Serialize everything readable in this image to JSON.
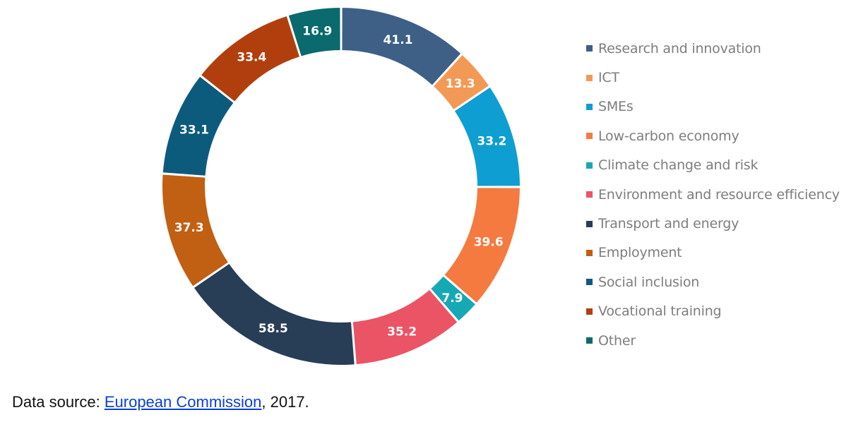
{
  "chart_data": {
    "type": "pie",
    "donut": true,
    "categories": [
      "Research and innovation",
      "ICT",
      "SMEs",
      "Low-carbon economy",
      "Climate change and risk",
      "Environment and resource efficiency",
      "Transport and energy",
      "Employment",
      "Social inclusion",
      "Vocational training",
      "Other"
    ],
    "values": [
      41.1,
      13.3,
      33.2,
      39.6,
      7.9,
      35.2,
      58.5,
      37.3,
      33.1,
      33.4,
      16.9
    ],
    "value_labels": [
      "41.1",
      "13.3",
      "33.2",
      "39.6",
      "7.9",
      "35.2",
      "58.5",
      "37.3",
      "33.1",
      "33.4",
      "16.9"
    ],
    "colors": [
      "#3e5f86",
      "#f29a55",
      "#0f9ed1",
      "#f57a40",
      "#16a9b5",
      "#ea5465",
      "#283d56",
      "#c15f13",
      "#0c5b7d",
      "#b13f0e",
      "#0a6a6d"
    ],
    "legend_position": "right",
    "start_angle": "top, clockwise"
  },
  "source": {
    "prefix": "Data source: ",
    "link_text": "European Commission",
    "suffix": ", 2017."
  }
}
